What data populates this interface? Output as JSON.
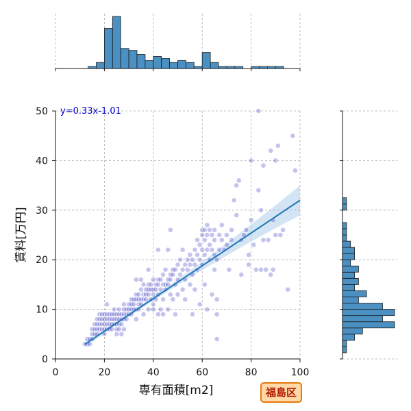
{
  "chart_data": {
    "type": "scatter",
    "xlabel": "専有面積[m2]",
    "ylabel": "賃料[万円]",
    "xlim": [
      0,
      100
    ],
    "ylim": [
      0,
      50
    ],
    "xticks": [
      0,
      20,
      40,
      60,
      80,
      100
    ],
    "yticks": [
      0,
      10,
      20,
      30,
      40,
      50
    ],
    "grid": true,
    "annotation": "y=0.33x-1.01",
    "regression": {
      "slope": 0.33,
      "intercept": -1.01,
      "x_range": [
        12,
        100
      ]
    },
    "colors": {
      "points": "#2b2bc0",
      "line": "#1f77b4",
      "band": "#9dc3e6",
      "hist": "#4a90c2",
      "annotation": "#0000cc"
    },
    "x_histogram": {
      "bin_edges": [
        0,
        3.33,
        6.67,
        10,
        13.33,
        16.67,
        20,
        23.33,
        26.67,
        30,
        33.33,
        36.67,
        40,
        43.33,
        46.67,
        50,
        53.33,
        56.67,
        60,
        63.33,
        66.67,
        70,
        73.33,
        76.67,
        80,
        83.33,
        86.67,
        90,
        93.33,
        96.67,
        100
      ],
      "counts": [
        0,
        0,
        0,
        0,
        1,
        3,
        20,
        26,
        10,
        9,
        7,
        4,
        6,
        5,
        3,
        4,
        3,
        1,
        8,
        3,
        1,
        1,
        1,
        0,
        1,
        1,
        1,
        1,
        0,
        0
      ]
    },
    "y_histogram": {
      "bin_edges": [
        0,
        1.25,
        2.5,
        3.75,
        5,
        6.25,
        7.5,
        8.75,
        10,
        11.25,
        12.5,
        13.75,
        15,
        16.25,
        17.5,
        18.75,
        20,
        21.25,
        22.5,
        23.75,
        25,
        26.25,
        27.5,
        28.75,
        30,
        31.25,
        32.5,
        33.75,
        35,
        36.25,
        37.5,
        38.75,
        40,
        41.25,
        42.5,
        43.75,
        45,
        46.25,
        47.5,
        48.75,
        50
      ],
      "counts": [
        0,
        1,
        1,
        3,
        5,
        13,
        10,
        13,
        10,
        4,
        6,
        3,
        4,
        3,
        4,
        2,
        3,
        3,
        2,
        1,
        1,
        1,
        0,
        0,
        1,
        1,
        0,
        0,
        0,
        0,
        0,
        0,
        0,
        0,
        0,
        0,
        0,
        0,
        0,
        0
      ]
    },
    "points": [
      [
        12,
        3
      ],
      [
        13,
        3
      ],
      [
        13,
        4
      ],
      [
        14,
        4
      ],
      [
        14,
        3
      ],
      [
        15,
        4
      ],
      [
        15,
        5
      ],
      [
        15,
        6
      ],
      [
        16,
        5
      ],
      [
        16,
        6
      ],
      [
        16,
        7
      ],
      [
        17,
        5
      ],
      [
        17,
        6
      ],
      [
        17,
        7
      ],
      [
        17,
        8
      ],
      [
        18,
        6
      ],
      [
        18,
        7
      ],
      [
        18,
        8
      ],
      [
        18,
        9
      ],
      [
        19,
        6
      ],
      [
        19,
        7
      ],
      [
        19,
        8
      ],
      [
        19,
        9
      ],
      [
        20,
        6
      ],
      [
        20,
        7
      ],
      [
        20,
        8
      ],
      [
        20,
        9
      ],
      [
        20,
        5
      ],
      [
        21,
        6
      ],
      [
        21,
        7
      ],
      [
        21,
        8
      ],
      [
        21,
        9
      ],
      [
        21,
        11
      ],
      [
        22,
        6
      ],
      [
        22,
        7
      ],
      [
        22,
        8
      ],
      [
        22,
        9
      ],
      [
        23,
        6
      ],
      [
        23,
        7
      ],
      [
        23,
        8
      ],
      [
        23,
        9
      ],
      [
        24,
        7
      ],
      [
        24,
        8
      ],
      [
        24,
        9
      ],
      [
        24,
        10
      ],
      [
        25,
        5
      ],
      [
        25,
        6
      ],
      [
        25,
        7
      ],
      [
        25,
        8
      ],
      [
        25,
        9
      ],
      [
        26,
        6
      ],
      [
        26,
        7
      ],
      [
        26,
        8
      ],
      [
        26,
        9
      ],
      [
        26,
        10
      ],
      [
        27,
        5
      ],
      [
        27,
        7
      ],
      [
        27,
        8
      ],
      [
        27,
        9
      ],
      [
        28,
        6
      ],
      [
        28,
        8
      ],
      [
        28,
        9
      ],
      [
        28,
        10
      ],
      [
        29,
        8
      ],
      [
        29,
        9
      ],
      [
        29,
        10
      ],
      [
        30,
        9
      ],
      [
        30,
        10
      ],
      [
        30,
        11
      ],
      [
        31,
        9
      ],
      [
        31,
        10
      ],
      [
        31,
        11
      ],
      [
        31,
        12
      ],
      [
        32,
        10
      ],
      [
        32,
        11
      ],
      [
        32,
        12
      ],
      [
        33,
        8
      ],
      [
        33,
        10
      ],
      [
        33,
        12
      ],
      [
        33,
        13
      ],
      [
        34,
        10
      ],
      [
        34,
        11
      ],
      [
        34,
        12
      ],
      [
        34,
        13
      ],
      [
        35,
        11
      ],
      [
        35,
        12
      ],
      [
        35,
        14
      ],
      [
        36,
        9
      ],
      [
        36,
        12
      ],
      [
        36,
        13
      ],
      [
        36,
        15
      ],
      [
        37,
        12
      ],
      [
        37,
        13
      ],
      [
        37,
        14
      ],
      [
        38,
        10
      ],
      [
        38,
        13
      ],
      [
        38,
        14
      ],
      [
        38,
        15
      ],
      [
        39,
        12
      ],
      [
        39,
        14
      ],
      [
        39,
        15
      ],
      [
        40,
        11
      ],
      [
        40,
        13
      ],
      [
        40,
        14
      ],
      [
        40,
        16
      ],
      [
        41,
        12
      ],
      [
        41,
        14
      ],
      [
        41,
        15
      ],
      [
        42,
        9
      ],
      [
        42,
        13
      ],
      [
        42,
        15
      ],
      [
        42,
        16
      ],
      [
        43,
        10
      ],
      [
        43,
        14
      ],
      [
        43,
        16
      ],
      [
        44,
        12
      ],
      [
        44,
        15
      ],
      [
        44,
        17
      ],
      [
        45,
        14
      ],
      [
        45,
        15
      ],
      [
        45,
        18
      ],
      [
        46,
        10
      ],
      [
        46,
        15
      ],
      [
        46,
        16
      ],
      [
        47,
        13
      ],
      [
        47,
        16
      ],
      [
        47,
        17
      ],
      [
        48,
        12
      ],
      [
        48,
        17
      ],
      [
        48,
        18
      ],
      [
        49,
        15
      ],
      [
        49,
        18
      ],
      [
        50,
        13
      ],
      [
        50,
        16
      ],
      [
        50,
        19
      ],
      [
        51,
        17
      ],
      [
        51,
        20
      ],
      [
        52,
        14
      ],
      [
        52,
        18
      ],
      [
        53,
        16
      ],
      [
        53,
        19
      ],
      [
        54,
        18
      ],
      [
        54,
        20
      ],
      [
        55,
        15
      ],
      [
        55,
        19
      ],
      [
        55,
        21
      ],
      [
        56,
        17
      ],
      [
        56,
        20
      ],
      [
        57,
        19
      ],
      [
        57,
        22
      ],
      [
        58,
        18
      ],
      [
        58,
        21
      ],
      [
        58,
        24
      ],
      [
        59,
        20
      ],
      [
        59,
        23
      ],
      [
        60,
        19
      ],
      [
        60,
        22
      ],
      [
        60,
        25
      ],
      [
        60,
        26
      ],
      [
        61,
        21
      ],
      [
        61,
        24
      ],
      [
        61,
        26
      ],
      [
        62,
        22
      ],
      [
        62,
        25
      ],
      [
        62,
        27
      ],
      [
        63,
        20
      ],
      [
        63,
        23
      ],
      [
        63,
        26
      ],
      [
        64,
        22
      ],
      [
        64,
        25
      ],
      [
        65,
        18
      ],
      [
        65,
        21
      ],
      [
        65,
        24
      ],
      [
        65,
        26
      ],
      [
        66,
        4
      ],
      [
        66,
        9
      ],
      [
        66,
        12
      ],
      [
        66,
        20
      ],
      [
        67,
        22
      ],
      [
        67,
        25
      ],
      [
        68,
        24
      ],
      [
        68,
        27
      ],
      [
        69,
        22
      ],
      [
        70,
        23
      ],
      [
        70,
        25
      ],
      [
        71,
        18
      ],
      [
        72,
        24
      ],
      [
        72,
        26
      ],
      [
        73,
        32
      ],
      [
        74,
        35
      ],
      [
        74,
        29
      ],
      [
        75,
        36
      ],
      [
        76,
        17
      ],
      [
        76,
        24
      ],
      [
        77,
        25
      ],
      [
        78,
        26
      ],
      [
        79,
        19
      ],
      [
        79,
        21
      ],
      [
        80,
        28
      ],
      [
        80,
        40
      ],
      [
        81,
        23
      ],
      [
        82,
        18
      ],
      [
        83,
        50
      ],
      [
        83,
        34
      ],
      [
        84,
        30
      ],
      [
        84,
        18
      ],
      [
        85,
        39
      ],
      [
        85,
        24
      ],
      [
        86,
        18
      ],
      [
        87,
        24
      ],
      [
        88,
        42
      ],
      [
        88,
        17
      ],
      [
        89,
        28
      ],
      [
        89,
        18
      ],
      [
        90,
        25
      ],
      [
        90,
        40
      ],
      [
        91,
        43
      ],
      [
        92,
        25
      ],
      [
        93,
        26
      ],
      [
        95,
        14
      ],
      [
        97,
        45
      ],
      [
        98,
        38
      ],
      [
        47,
        26
      ],
      [
        35,
        16
      ],
      [
        28,
        11
      ],
      [
        42,
        22
      ],
      [
        53,
        12
      ],
      [
        56,
        9
      ],
      [
        62,
        10
      ],
      [
        64,
        13
      ],
      [
        38,
        18
      ],
      [
        33,
        16
      ],
      [
        44,
        9
      ],
      [
        49,
        9
      ],
      [
        59,
        11
      ],
      [
        46,
        22
      ],
      [
        52,
        22
      ],
      [
        40,
        10
      ],
      [
        57,
        14
      ],
      [
        61,
        15
      ]
    ]
  },
  "badge": {
    "label": "福島区"
  }
}
